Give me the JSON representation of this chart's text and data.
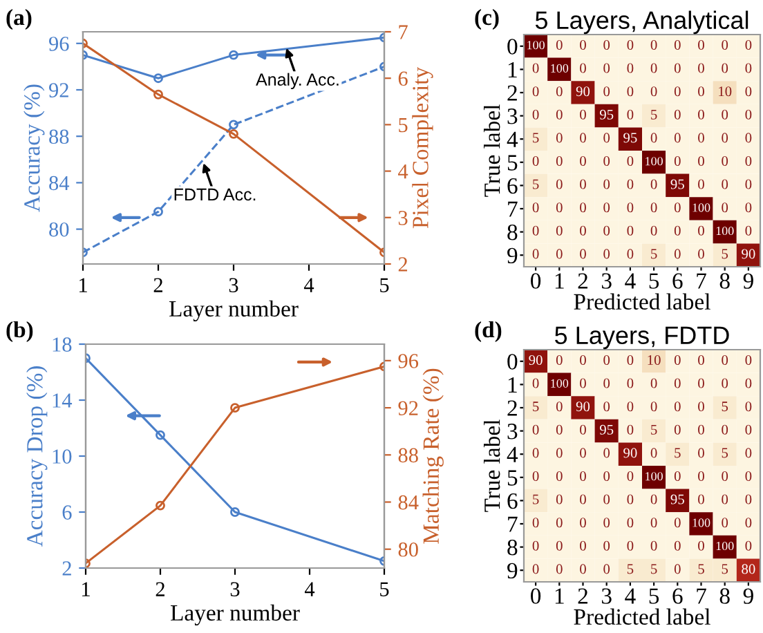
{
  "chart_data": [
    {
      "type": "line",
      "x": [
        1,
        2,
        3,
        5
      ],
      "xlabel": "Layer number",
      "ylabel": "Accuracy (%)",
      "y2label": "Pixel Complexity",
      "xlim": [
        1,
        5
      ],
      "xticks": [
        1,
        2,
        3,
        4,
        5
      ],
      "ylim": [
        77,
        97
      ],
      "yticks": [
        80,
        84,
        88,
        92,
        96
      ],
      "y2lim": [
        2,
        7
      ],
      "y2ticks": [
        2,
        3,
        4,
        5,
        6,
        7
      ],
      "marker": "circle",
      "grid": false,
      "legend": false,
      "series": [
        {
          "color": "#4a7fc9",
          "values": [
            95,
            93,
            95,
            96.5
          ],
          "line_style": "solid"
        },
        {
          "color": "#4a7fc9",
          "values": [
            78,
            81.5,
            89,
            94
          ],
          "line_style": "dashed"
        },
        {
          "color": "#c8602c",
          "values": [
            6.75,
            5.65,
            4.8,
            2.25
          ],
          "axis": "y2",
          "line_style": "solid"
        }
      ],
      "annotations": [
        "(a)",
        {
          "text": "Analy. Acc.",
          "x": 3.7,
          "y": 95.6
        },
        {
          "text": "FDTD Acc.",
          "x": 2.6,
          "y": 85.7
        }
      ]
    },
    {
      "type": "line",
      "x": [
        1,
        2,
        3,
        5
      ],
      "xlabel": "Layer number",
      "ylabel": "Accuracy Drop (%)",
      "y2label": "Matching Rate (%)",
      "xlim": [
        1,
        5
      ],
      "xticks": [
        1,
        2,
        3,
        4,
        5
      ],
      "ylim": [
        2,
        18
      ],
      "yticks": [
        2,
        6,
        10,
        14,
        18
      ],
      "y2lim": [
        78.4,
        97.4
      ],
      "y2ticks": [
        80,
        84,
        88,
        92,
        96
      ],
      "marker": "circle",
      "grid": false,
      "legend": false,
      "series": [
        {
          "color": "#4a7fc9",
          "values": [
            17,
            11.5,
            6,
            2.5
          ]
        },
        {
          "color": "#c8602c",
          "values": [
            78.8,
            83.7,
            92,
            95.5
          ],
          "axis": "y2"
        }
      ],
      "annotations": [
        "(b)"
      ]
    },
    {
      "type": "heatmap",
      "title": "5 Layers, Analytical",
      "xlabel": "Predicted label",
      "ylabel": "True label",
      "categories": [
        "0",
        "1",
        "2",
        "3",
        "4",
        "5",
        "6",
        "7",
        "8",
        "9"
      ],
      "y_categories": [
        "0",
        "1",
        "2",
        "3",
        "4",
        "5",
        "6",
        "7",
        "8",
        "9"
      ],
      "data_labels": true,
      "cells": [
        [
          100,
          0,
          0,
          0,
          0,
          0,
          0,
          0,
          0,
          0
        ],
        [
          0,
          100,
          0,
          0,
          0,
          0,
          0,
          0,
          0,
          0
        ],
        [
          0,
          0,
          90,
          0,
          0,
          0,
          0,
          0,
          10,
          0
        ],
        [
          0,
          0,
          0,
          95,
          0,
          5,
          0,
          0,
          0,
          0
        ],
        [
          5,
          0,
          0,
          0,
          95,
          0,
          0,
          0,
          0,
          0
        ],
        [
          0,
          0,
          0,
          0,
          0,
          100,
          0,
          0,
          0,
          0
        ],
        [
          5,
          0,
          0,
          0,
          0,
          0,
          95,
          0,
          0,
          0
        ],
        [
          0,
          0,
          0,
          0,
          0,
          0,
          0,
          100,
          0,
          0
        ],
        [
          0,
          0,
          0,
          0,
          0,
          0,
          0,
          0,
          100,
          0
        ],
        [
          0,
          0,
          0,
          0,
          0,
          5,
          0,
          0,
          5,
          90
        ]
      ],
      "annotations": [
        "(c)"
      ]
    },
    {
      "type": "heatmap",
      "title": "5 Layers, FDTD",
      "xlabel": "Predicted label",
      "ylabel": "True label",
      "categories": [
        "0",
        "1",
        "2",
        "3",
        "4",
        "5",
        "6",
        "7",
        "8",
        "9"
      ],
      "y_categories": [
        "0",
        "1",
        "2",
        "3",
        "4",
        "5",
        "6",
        "7",
        "8",
        "9"
      ],
      "data_labels": true,
      "cells": [
        [
          90,
          0,
          0,
          0,
          0,
          10,
          0,
          0,
          0,
          0
        ],
        [
          0,
          100,
          0,
          0,
          0,
          0,
          0,
          0,
          0,
          0
        ],
        [
          5,
          0,
          90,
          0,
          0,
          0,
          0,
          0,
          5,
          0
        ],
        [
          0,
          0,
          0,
          95,
          0,
          5,
          0,
          0,
          0,
          0
        ],
        [
          0,
          0,
          0,
          0,
          90,
          0,
          5,
          0,
          5,
          0
        ],
        [
          0,
          0,
          0,
          0,
          0,
          100,
          0,
          0,
          0,
          0
        ],
        [
          5,
          0,
          0,
          0,
          0,
          0,
          95,
          0,
          0,
          0
        ],
        [
          0,
          0,
          0,
          0,
          0,
          0,
          0,
          100,
          0,
          0
        ],
        [
          0,
          0,
          0,
          0,
          0,
          0,
          0,
          0,
          100,
          0
        ],
        [
          0,
          0,
          0,
          0,
          5,
          5,
          0,
          5,
          5,
          80
        ]
      ],
      "annotations": [
        "(d)"
      ]
    }
  ]
}
